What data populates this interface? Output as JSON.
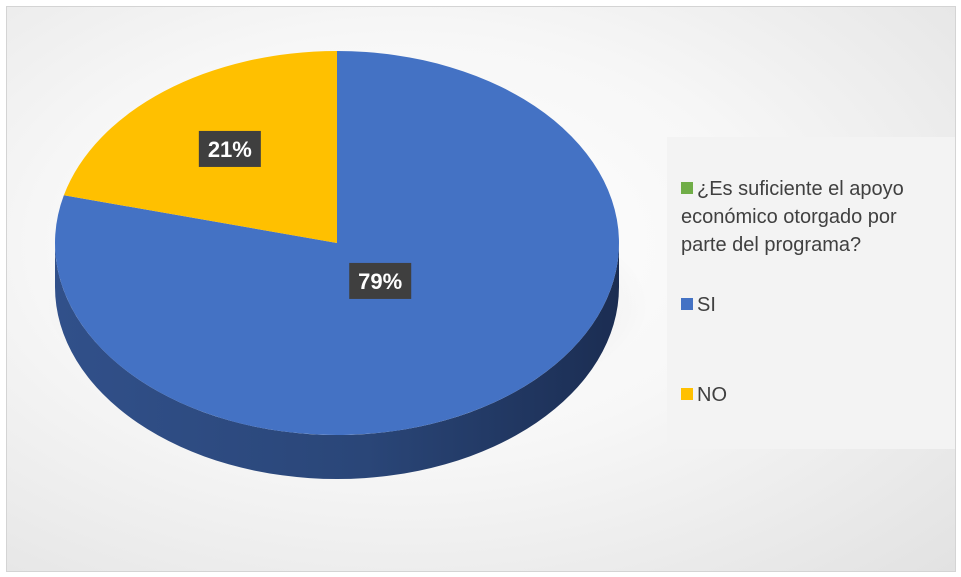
{
  "chart_data": {
    "type": "pie",
    "title": "",
    "series_name": "¿Es suficiente el apoyo económico otorgado por parte del programa?",
    "categories": [
      "SI",
      "NO"
    ],
    "values": [
      79,
      21
    ],
    "data_labels": [
      "79%",
      "21%"
    ],
    "colors": {
      "series_legend": "#70ad47",
      "SI": "#4472c4",
      "NO": "#ffc000"
    },
    "legend_position": "right",
    "style": "3d-pie"
  }
}
